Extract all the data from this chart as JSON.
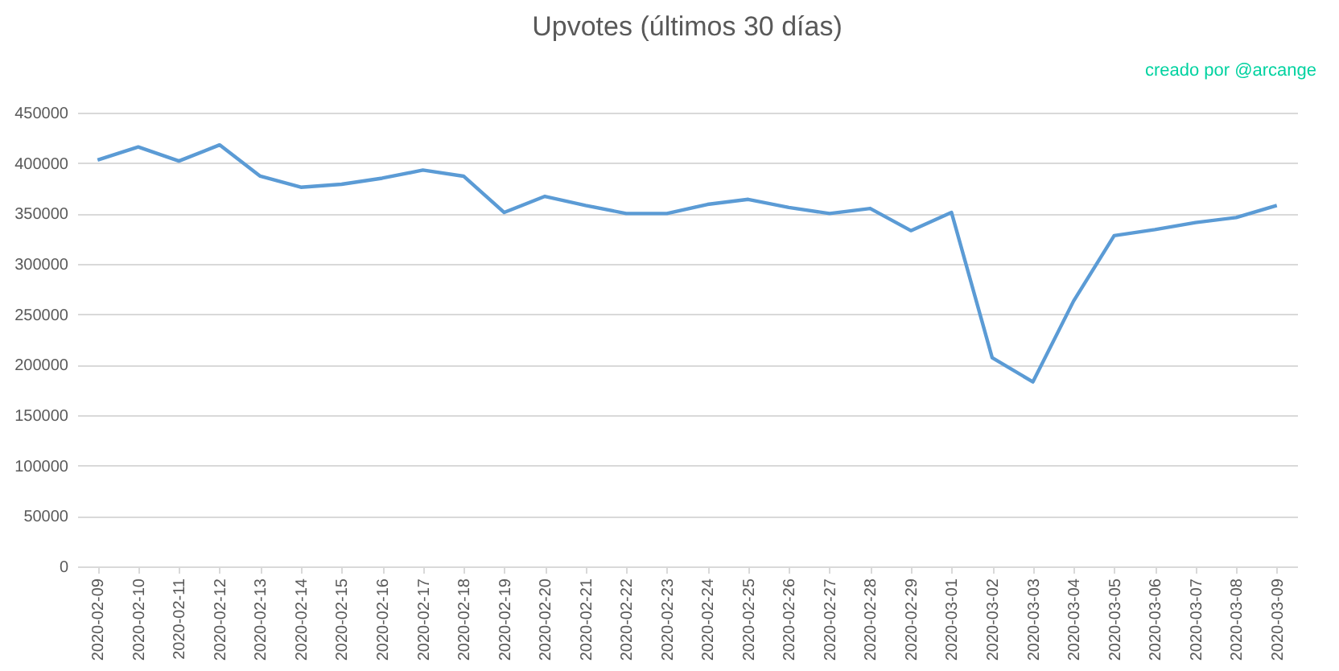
{
  "chart_data": {
    "type": "line",
    "title": "Upvotes (últimos 30 días)",
    "annotations": [
      "creado por @arcange"
    ],
    "categories": [
      "2020-02-09",
      "2020-02-10",
      "2020-02-11",
      "2020-02-12",
      "2020-02-13",
      "2020-02-14",
      "2020-02-15",
      "2020-02-16",
      "2020-02-17",
      "2020-02-18",
      "2020-02-19",
      "2020-02-20",
      "2020-02-21",
      "2020-02-22",
      "2020-02-23",
      "2020-02-24",
      "2020-02-25",
      "2020-02-26",
      "2020-02-27",
      "2020-02-28",
      "2020-02-29",
      "2020-03-01",
      "2020-03-02",
      "2020-03-03",
      "2020-03-04",
      "2020-03-05",
      "2020-03-06",
      "2020-03-07",
      "2020-03-08",
      "2020-03-09"
    ],
    "series": [
      {
        "color": "#5b9bd5",
        "values": [
          403000,
          416000,
          402000,
          418000,
          387000,
          376000,
          379000,
          385000,
          393000,
          387000,
          351000,
          367000,
          358000,
          350000,
          350000,
          359000,
          364000,
          356000,
          350000,
          355000,
          333000,
          351000,
          207000,
          183000,
          263000,
          328000,
          334000,
          341000,
          346000,
          358000
        ]
      }
    ],
    "ylim": [
      0,
      450000
    ],
    "yticks": [
      0,
      50000,
      100000,
      150000,
      200000,
      250000,
      300000,
      350000,
      400000,
      450000
    ],
    "grid": "y",
    "legend": false,
    "marker": "none",
    "line_style": "solid"
  }
}
